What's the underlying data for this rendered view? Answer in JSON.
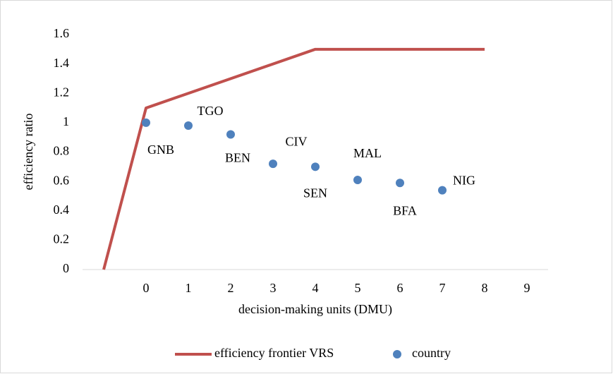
{
  "chart_data": {
    "type": "scatter",
    "x_label": "decision-making units (DMU)",
    "y_label": "efficiency ratio",
    "xlim": [
      -1.5,
      9.5
    ],
    "xticks": [
      0,
      1,
      2,
      3,
      4,
      5,
      6,
      7,
      8,
      9
    ],
    "ylim": [
      0,
      1.6
    ],
    "yticks": [
      0,
      0.2,
      0.4,
      0.6,
      0.8,
      1,
      1.2,
      1.4,
      1.6
    ],
    "grid": false,
    "legend": "bottom",
    "series": [
      {
        "name": "efficiency frontier VRS",
        "type": "line",
        "color": "#c0504d",
        "x": [
          -1,
          0,
          4,
          8
        ],
        "values": [
          0,
          1.1,
          1.5,
          1.5
        ]
      },
      {
        "name": "country",
        "type": "scatter",
        "color": "#4f81bd",
        "x": [
          0,
          1,
          2,
          3,
          4,
          5,
          6,
          7
        ],
        "values": [
          1.0,
          0.98,
          0.92,
          0.72,
          0.7,
          0.61,
          0.59,
          0.54
        ],
        "labels": [
          "GNB",
          "TGO",
          "BEN",
          "CIV",
          "SEN",
          "MAL",
          "BFA",
          "NIG"
        ],
        "label_colors": [
          "#000000",
          "#000000",
          "#2e75b6",
          "#000000",
          "#000000",
          "#000000",
          "#000000",
          "#000000"
        ]
      }
    ]
  }
}
